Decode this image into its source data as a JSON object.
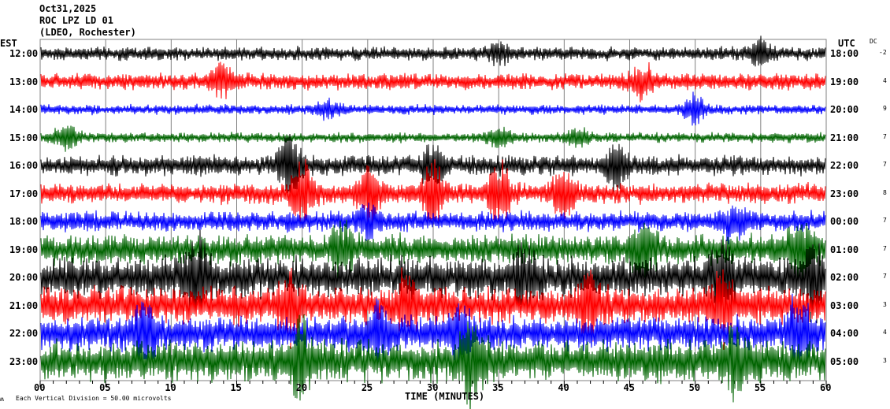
{
  "header": {
    "date": "Oct31,2025",
    "station": "ROC LPZ LD 01",
    "network": "(LDEO, Rochester)"
  },
  "left_tz": "EST",
  "right_tz": "UTC",
  "dc_label": "DC",
  "footer": {
    "glyph": "ʍ",
    "scale_text": "Each Vertical Division =   50.00 microvolts"
  },
  "chart_data": {
    "type": "line",
    "title": "ROC LPZ LD 01 (LDEO, Rochester) Oct31,2025",
    "xlabel": "TIME (MINUTES)",
    "xlim": [
      0,
      60
    ],
    "x_ticks": [
      "00",
      "05",
      "10",
      "15",
      "20",
      "25",
      "30",
      "35",
      "40",
      "45",
      "50",
      "55",
      "60"
    ],
    "grid": true,
    "trace_colors": [
      "#000000",
      "#ff0000",
      "#0000ff",
      "#006400"
    ],
    "grid_color": "#808080",
    "rows": [
      {
        "est": "12:00",
        "utc": "18:00",
        "dc": "-2",
        "base": 0.2,
        "bursts": [
          [
            55,
            0.35
          ],
          [
            35,
            0.25
          ]
        ]
      },
      {
        "est": "13:00",
        "utc": "19:00",
        "dc": "4",
        "base": 0.25,
        "bursts": [
          [
            14,
            0.45
          ],
          [
            46,
            0.45
          ]
        ]
      },
      {
        "est": "14:00",
        "utc": "20:00",
        "dc": "9",
        "base": 0.15,
        "bursts": [
          [
            50,
            0.45
          ],
          [
            22,
            0.3
          ]
        ]
      },
      {
        "est": "15:00",
        "utc": "21:00",
        "dc": "7",
        "base": 0.15,
        "bursts": [
          [
            2,
            0.5
          ],
          [
            35,
            0.3
          ],
          [
            41,
            0.3
          ]
        ]
      },
      {
        "est": "16:00",
        "utc": "22:00",
        "dc": "7",
        "base": 0.3,
        "bursts": [
          [
            19,
            0.9
          ],
          [
            30,
            0.6
          ],
          [
            44,
            0.7
          ]
        ]
      },
      {
        "est": "17:00",
        "utc": "23:00",
        "dc": "8",
        "base": 0.3,
        "bursts": [
          [
            20,
            1.0
          ],
          [
            25,
            1.0
          ],
          [
            30,
            1.0
          ],
          [
            35,
            0.9
          ],
          [
            40,
            0.8
          ]
        ]
      },
      {
        "est": "18:00",
        "utc": "00:00",
        "dc": "7",
        "base": 0.3,
        "bursts": [
          [
            25,
            0.5
          ],
          [
            53,
            0.5
          ]
        ]
      },
      {
        "est": "19:00",
        "utc": "01:00",
        "dc": "7",
        "base": 0.45,
        "bursts": [
          [
            46,
            0.9
          ],
          [
            23,
            0.6
          ],
          [
            58,
            0.7
          ]
        ]
      },
      {
        "est": "20:00",
        "utc": "02:00",
        "dc": "7",
        "base": 0.6,
        "bursts": [
          [
            12,
            0.8
          ],
          [
            37,
            0.7
          ],
          [
            52,
            0.9
          ],
          [
            59,
            0.9
          ]
        ]
      },
      {
        "est": "21:00",
        "utc": "03:00",
        "dc": "3",
        "base": 0.55,
        "bursts": [
          [
            19,
            0.9
          ],
          [
            28,
            0.8
          ],
          [
            42,
            0.7
          ],
          [
            52,
            0.9
          ]
        ]
      },
      {
        "est": "22:00",
        "utc": "04:00",
        "dc": "4",
        "base": 0.5,
        "bursts": [
          [
            8,
            0.8
          ],
          [
            26,
            0.8
          ],
          [
            32,
            0.8
          ],
          [
            58,
            1.0
          ]
        ]
      },
      {
        "est": "23:00",
        "utc": "05:00",
        "dc": "3",
        "base": 0.6,
        "bursts": [
          [
            20,
            1.0
          ],
          [
            33,
            1.2
          ],
          [
            53,
            0.9
          ]
        ]
      }
    ]
  }
}
